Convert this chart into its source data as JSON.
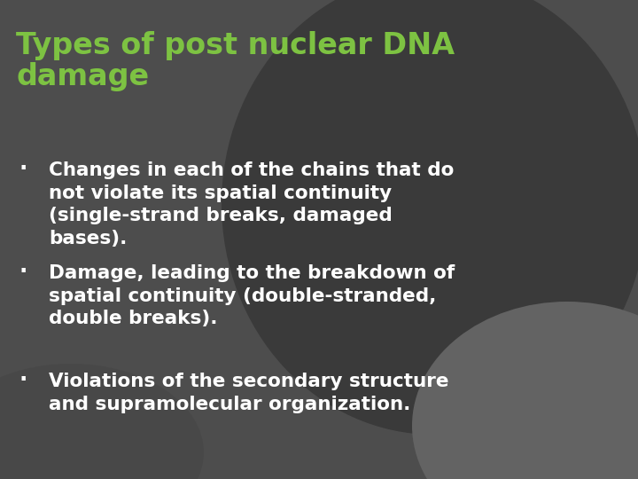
{
  "title_line1": "Types of post nuclear DNA",
  "title_line2": "damage",
  "title_color": "#7dc242",
  "title_fontsize": 24,
  "title_font_weight": "bold",
  "bullet_points": [
    "Changes in each of the chains that do\nnot violate its spatial continuity\n(single-strand breaks, damaged\nbases).",
    "Damage, leading to the breakdown of\nspatial continuity (double-stranded,\ndouble breaks).",
    "Violations of the secondary structure\nand supramolecular organization."
  ],
  "bullet_color": "#ffffff",
  "bullet_fontsize": 15.5,
  "bullet_font_weight": "bold",
  "bg_main": "#4d4d4d",
  "bg_ellipse_main": "#3d3d3d",
  "bg_ellipse_br": "#606060",
  "figsize": [
    7.2,
    5.4
  ],
  "dpi": 100
}
